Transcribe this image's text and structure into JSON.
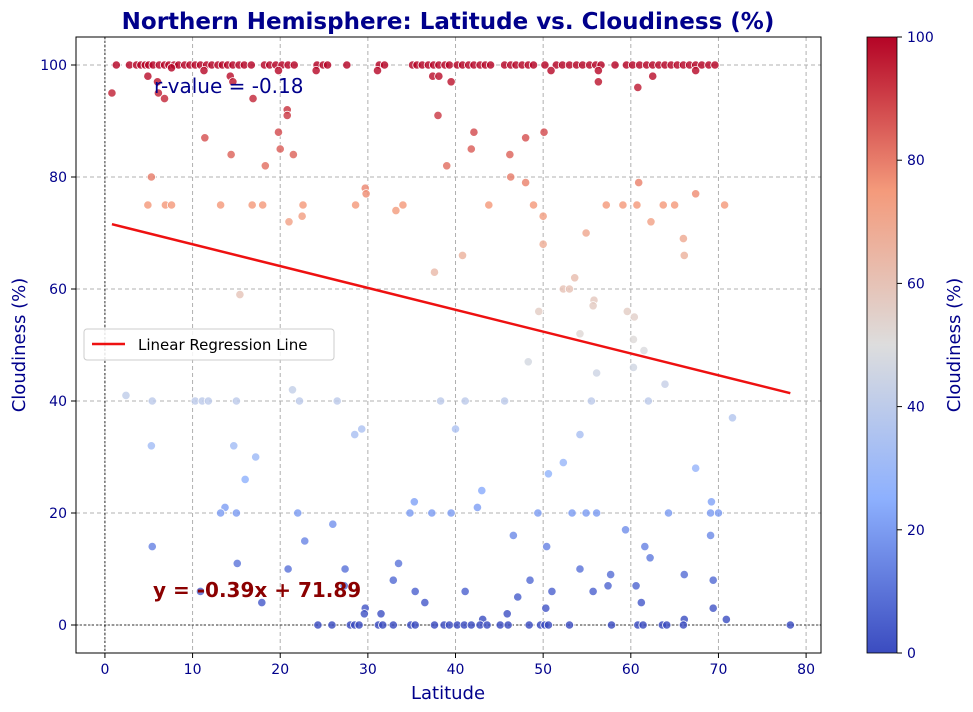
{
  "chart_data": {
    "type": "scatter",
    "title": "Northern Hemisphere: Latitude vs. Cloudiness (%)",
    "xlabel": "Latitude",
    "ylabel": "Cloudiness (%)",
    "xlim": [
      -3.3,
      81.7
    ],
    "ylim": [
      -5,
      105
    ],
    "xticks": [
      0,
      10,
      20,
      30,
      40,
      50,
      60,
      70,
      80
    ],
    "yticks": [
      0,
      20,
      40,
      60,
      80,
      100
    ],
    "grid": true,
    "colormap": "coolwarm",
    "colorbar": {
      "label": "Cloudiness (%)",
      "range": [
        0,
        100
      ],
      "ticks": [
        0,
        20,
        40,
        60,
        80,
        100
      ]
    },
    "legend": {
      "position": "center-left",
      "entries": [
        "Linear Regression Line"
      ]
    },
    "regression": {
      "slope": -0.39,
      "intercept": 71.89,
      "x_range": [
        0.8,
        78.2
      ],
      "color": "#ee1111"
    },
    "annotations": {
      "r_value": "r-value = -0.18",
      "equation": "y = -0.39x + 71.89"
    },
    "points": [
      [
        0.8,
        95
      ],
      [
        1.3,
        100
      ],
      [
        2.8,
        100
      ],
      [
        3.6,
        100
      ],
      [
        4.1,
        100
      ],
      [
        4.6,
        100
      ],
      [
        5.0,
        100
      ],
      [
        5.5,
        100
      ],
      [
        6.2,
        100
      ],
      [
        6.8,
        100
      ],
      [
        7.3,
        100
      ],
      [
        7.9,
        100
      ],
      [
        8.4,
        100
      ],
      [
        9.1,
        100
      ],
      [
        9.7,
        100
      ],
      [
        10.3,
        100
      ],
      [
        10.9,
        100
      ],
      [
        11.6,
        100
      ],
      [
        12.2,
        100
      ],
      [
        12.9,
        100
      ],
      [
        13.4,
        100
      ],
      [
        14.0,
        100
      ],
      [
        14.6,
        100
      ],
      [
        15.3,
        100
      ],
      [
        15.9,
        100
      ],
      [
        16.7,
        100
      ],
      [
        18.2,
        100
      ],
      [
        18.8,
        100
      ],
      [
        19.5,
        100
      ],
      [
        20.2,
        100
      ],
      [
        20.9,
        100
      ],
      [
        21.6,
        100
      ],
      [
        24.2,
        100
      ],
      [
        24.9,
        100
      ],
      [
        25.4,
        100
      ],
      [
        27.6,
        100
      ],
      [
        31.3,
        100
      ],
      [
        31.9,
        100
      ],
      [
        35.1,
        100
      ],
      [
        35.6,
        100
      ],
      [
        36.2,
        100
      ],
      [
        36.9,
        100
      ],
      [
        37.5,
        100
      ],
      [
        38.1,
        100
      ],
      [
        38.8,
        100
      ],
      [
        39.3,
        100
      ],
      [
        40.2,
        100
      ],
      [
        40.8,
        100
      ],
      [
        41.5,
        100
      ],
      [
        42.1,
        100
      ],
      [
        42.8,
        100
      ],
      [
        43.4,
        100
      ],
      [
        44.0,
        100
      ],
      [
        45.6,
        100
      ],
      [
        46.3,
        100
      ],
      [
        46.9,
        100
      ],
      [
        47.6,
        100
      ],
      [
        48.3,
        100
      ],
      [
        48.9,
        100
      ],
      [
        50.2,
        100
      ],
      [
        51.5,
        100
      ],
      [
        52.2,
        100
      ],
      [
        53.0,
        100
      ],
      [
        53.8,
        100
      ],
      [
        54.5,
        100
      ],
      [
        55.3,
        100
      ],
      [
        56.0,
        100
      ],
      [
        56.6,
        100
      ],
      [
        58.2,
        100
      ],
      [
        59.5,
        100
      ],
      [
        60.2,
        100
      ],
      [
        61.0,
        100
      ],
      [
        61.8,
        100
      ],
      [
        62.5,
        100
      ],
      [
        63.2,
        100
      ],
      [
        63.9,
        100
      ],
      [
        64.6,
        100
      ],
      [
        65.3,
        100
      ],
      [
        66.0,
        100
      ],
      [
        66.7,
        100
      ],
      [
        67.4,
        100
      ],
      [
        68.1,
        100
      ],
      [
        68.9,
        100
      ],
      [
        69.6,
        100
      ],
      [
        7.6,
        99.5
      ],
      [
        11.3,
        99
      ],
      [
        19.8,
        99
      ],
      [
        24.1,
        99
      ],
      [
        31.1,
        99
      ],
      [
        50.9,
        99
      ],
      [
        56.3,
        99
      ],
      [
        67.4,
        99
      ],
      [
        4.9,
        98
      ],
      [
        14.3,
        98
      ],
      [
        37.4,
        98
      ],
      [
        38.1,
        98
      ],
      [
        62.5,
        98
      ],
      [
        6.0,
        97
      ],
      [
        14.6,
        97
      ],
      [
        39.5,
        97
      ],
      [
        56.3,
        97
      ],
      [
        6.1,
        95
      ],
      [
        20.8,
        92
      ],
      [
        20.8,
        91
      ],
      [
        38.0,
        91
      ],
      [
        60.8,
        96
      ],
      [
        6.8,
        94
      ],
      [
        16.9,
        94
      ],
      [
        19.8,
        88
      ],
      [
        42.1,
        88
      ],
      [
        50.1,
        88
      ],
      [
        11.4,
        87
      ],
      [
        48.0,
        87
      ],
      [
        20.0,
        85
      ],
      [
        41.8,
        85
      ],
      [
        14.4,
        84
      ],
      [
        21.5,
        84
      ],
      [
        46.2,
        84
      ],
      [
        18.3,
        82
      ],
      [
        39.0,
        82
      ],
      [
        5.3,
        80
      ],
      [
        46.3,
        80
      ],
      [
        60.9,
        79
      ],
      [
        48.0,
        79
      ],
      [
        29.7,
        78
      ],
      [
        29.8,
        77
      ],
      [
        67.4,
        77
      ],
      [
        4.9,
        75
      ],
      [
        6.9,
        75
      ],
      [
        7.6,
        75
      ],
      [
        13.2,
        75
      ],
      [
        16.8,
        75
      ],
      [
        18.0,
        75
      ],
      [
        22.6,
        75
      ],
      [
        28.6,
        75
      ],
      [
        34.0,
        75
      ],
      [
        43.8,
        75
      ],
      [
        48.9,
        75
      ],
      [
        57.2,
        75
      ],
      [
        59.1,
        75
      ],
      [
        60.7,
        75
      ],
      [
        63.7,
        75
      ],
      [
        65.0,
        75
      ],
      [
        70.7,
        75
      ],
      [
        33.2,
        74
      ],
      [
        22.5,
        73
      ],
      [
        50.0,
        73
      ],
      [
        21.0,
        72
      ],
      [
        62.3,
        72
      ],
      [
        54.9,
        70
      ],
      [
        66.0,
        69
      ],
      [
        50.0,
        68
      ],
      [
        66.1,
        66
      ],
      [
        40.8,
        66
      ],
      [
        37.6,
        63
      ],
      [
        53.6,
        62
      ],
      [
        52.3,
        60
      ],
      [
        53.0,
        60
      ],
      [
        15.4,
        59
      ],
      [
        55.8,
        58
      ],
      [
        55.7,
        57
      ],
      [
        49.5,
        56
      ],
      [
        59.6,
        56
      ],
      [
        60.4,
        55
      ],
      [
        54.2,
        52
      ],
      [
        60.3,
        51
      ],
      [
        61.5,
        49
      ],
      [
        48.3,
        47
      ],
      [
        60.3,
        46
      ],
      [
        56.1,
        45
      ],
      [
        63.9,
        43
      ],
      [
        21.4,
        42
      ],
      [
        2.4,
        41
      ],
      [
        5.4,
        40
      ],
      [
        10.3,
        40
      ],
      [
        11.1,
        40
      ],
      [
        11.8,
        40
      ],
      [
        15.0,
        40
      ],
      [
        22.2,
        40
      ],
      [
        26.5,
        40
      ],
      [
        38.3,
        40
      ],
      [
        41.1,
        40
      ],
      [
        45.6,
        40
      ],
      [
        55.5,
        40
      ],
      [
        62.0,
        40
      ],
      [
        71.6,
        37
      ],
      [
        29.3,
        35
      ],
      [
        40.0,
        35
      ],
      [
        28.5,
        34
      ],
      [
        54.2,
        34
      ],
      [
        5.3,
        32
      ],
      [
        14.7,
        32
      ],
      [
        17.2,
        30
      ],
      [
        52.3,
        29
      ],
      [
        67.4,
        28
      ],
      [
        50.6,
        27
      ],
      [
        16.0,
        26
      ],
      [
        43.0,
        24
      ],
      [
        35.3,
        22
      ],
      [
        69.2,
        22
      ],
      [
        42.5,
        21
      ],
      [
        13.7,
        21
      ],
      [
        13.2,
        20
      ],
      [
        15.0,
        20
      ],
      [
        22.0,
        20
      ],
      [
        34.8,
        20
      ],
      [
        37.3,
        20
      ],
      [
        39.5,
        20
      ],
      [
        49.4,
        20
      ],
      [
        53.3,
        20
      ],
      [
        54.9,
        20
      ],
      [
        56.1,
        20
      ],
      [
        64.3,
        20
      ],
      [
        69.1,
        20
      ],
      [
        70.0,
        20
      ],
      [
        26.0,
        18
      ],
      [
        59.4,
        17
      ],
      [
        46.6,
        16
      ],
      [
        69.1,
        16
      ],
      [
        22.8,
        15
      ],
      [
        5.4,
        14
      ],
      [
        50.4,
        14
      ],
      [
        61.6,
        14
      ],
      [
        62.2,
        12
      ],
      [
        33.5,
        11
      ],
      [
        15.1,
        11
      ],
      [
        27.4,
        10
      ],
      [
        54.2,
        10
      ],
      [
        20.9,
        10
      ],
      [
        57.7,
        9
      ],
      [
        66.1,
        9
      ],
      [
        32.9,
        8
      ],
      [
        48.5,
        8
      ],
      [
        69.4,
        8
      ],
      [
        60.6,
        7
      ],
      [
        57.4,
        7
      ],
      [
        27.3,
        7
      ],
      [
        10.9,
        6
      ],
      [
        35.4,
        6
      ],
      [
        41.1,
        6
      ],
      [
        51.0,
        6
      ],
      [
        55.7,
        6
      ],
      [
        47.1,
        5
      ],
      [
        61.2,
        4
      ],
      [
        36.5,
        4
      ],
      [
        17.9,
        4
      ],
      [
        29.7,
        3
      ],
      [
        50.3,
        3
      ],
      [
        69.4,
        3
      ],
      [
        45.9,
        2
      ],
      [
        29.6,
        2
      ],
      [
        31.5,
        2
      ],
      [
        43.1,
        1
      ],
      [
        66.1,
        1
      ],
      [
        70.9,
        1
      ],
      [
        24.3,
        0
      ],
      [
        25.9,
        0
      ],
      [
        28.0,
        0
      ],
      [
        28.5,
        0
      ],
      [
        29.0,
        0
      ],
      [
        31.2,
        0
      ],
      [
        31.7,
        0
      ],
      [
        32.9,
        0
      ],
      [
        34.9,
        0
      ],
      [
        35.4,
        0
      ],
      [
        37.6,
        0
      ],
      [
        38.7,
        0
      ],
      [
        39.3,
        0
      ],
      [
        40.2,
        0
      ],
      [
        41.0,
        0
      ],
      [
        41.8,
        0
      ],
      [
        42.8,
        0
      ],
      [
        43.6,
        0
      ],
      [
        45.1,
        0
      ],
      [
        46.0,
        0
      ],
      [
        48.4,
        0
      ],
      [
        49.7,
        0
      ],
      [
        50.2,
        0
      ],
      [
        50.6,
        0
      ],
      [
        53.0,
        0
      ],
      [
        57.8,
        0
      ],
      [
        60.8,
        0
      ],
      [
        61.4,
        0
      ],
      [
        63.6,
        0
      ],
      [
        64.1,
        0
      ],
      [
        66.0,
        0
      ],
      [
        78.2,
        0
      ]
    ]
  }
}
